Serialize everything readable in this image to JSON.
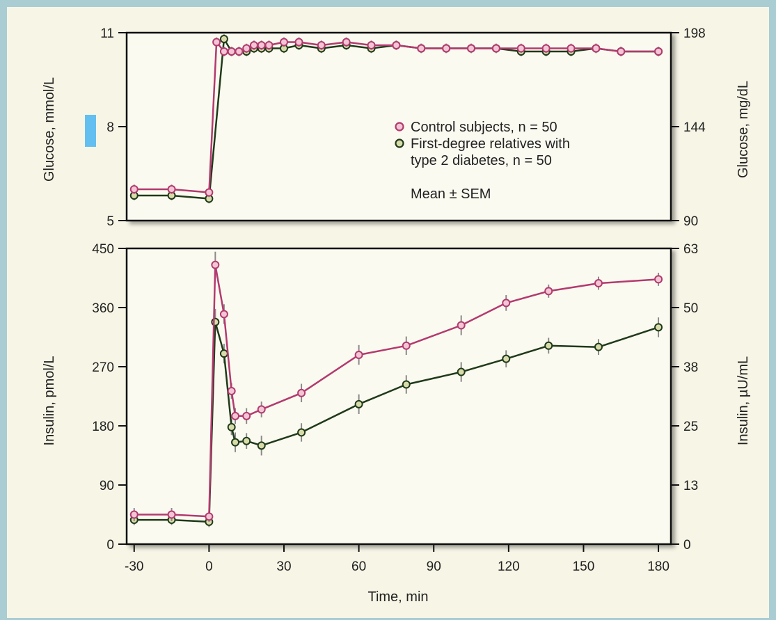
{
  "colors": {
    "background": "#a9cdd3",
    "panel": "#f7f5e6",
    "control": "#b23a6f",
    "control_marker_fill": "#f2c6d4",
    "relatives": "#1f3a1a",
    "relatives_marker_fill": "#d9dcaa",
    "error_bar": "#8a8a8a",
    "highlight": "#63bff0"
  },
  "chart_data": [
    {
      "type": "line",
      "panel": "top",
      "ylabel_left": "Glucose, mmol/L",
      "ylabel_right": "Glucose, mg/dL",
      "ylim": [
        5,
        11
      ],
      "yticks_left": [
        "5",
        "8",
        "11"
      ],
      "yticks_right": [
        "90",
        "144",
        "198"
      ],
      "legend": {
        "placement": "center-right",
        "entries": [
          {
            "series": "control",
            "line1": "Control subjects, n = 50",
            "line2": ""
          },
          {
            "series": "relatives",
            "line1": "First-degree relatives with",
            "line2": "type 2 diabetes, n = 50"
          }
        ],
        "note": "Mean ± SEM"
      },
      "series": [
        {
          "key": "control",
          "x": [
            -30,
            -15,
            0,
            3,
            6,
            9,
            12,
            15,
            18,
            21,
            24,
            30,
            36,
            45,
            55,
            65,
            75,
            85,
            95,
            105,
            115,
            125,
            135,
            145,
            155,
            165,
            180
          ],
          "y": [
            6.0,
            6.0,
            5.9,
            10.7,
            10.4,
            10.4,
            10.4,
            10.5,
            10.6,
            10.6,
            10.6,
            10.7,
            10.7,
            10.6,
            10.7,
            10.6,
            10.6,
            10.5,
            10.5,
            10.5,
            10.5,
            10.5,
            10.5,
            10.5,
            10.5,
            10.4,
            10.4
          ],
          "err": [
            0.15,
            0.15,
            0.15,
            0.15,
            0.15,
            0.15,
            0.15,
            0.15,
            0.15,
            0.15,
            0.15,
            0.15,
            0.15,
            0.15,
            0.15,
            0.15,
            0.15,
            0.15,
            0.15,
            0.15,
            0.15,
            0.15,
            0.15,
            0.15,
            0.15,
            0.15,
            0.15
          ]
        },
        {
          "key": "relatives",
          "x": [
            -30,
            -15,
            0,
            6,
            9,
            12,
            15,
            18,
            21,
            24,
            30,
            36,
            45,
            55,
            65,
            75,
            85,
            95,
            105,
            115,
            125,
            135,
            145,
            155,
            165,
            180
          ],
          "y": [
            5.8,
            5.8,
            5.7,
            10.8,
            10.4,
            10.4,
            10.4,
            10.5,
            10.5,
            10.5,
            10.5,
            10.6,
            10.5,
            10.6,
            10.5,
            10.6,
            10.5,
            10.5,
            10.5,
            10.5,
            10.4,
            10.4,
            10.4,
            10.5,
            10.4,
            10.4
          ],
          "err": [
            0.15,
            0.15,
            0.15,
            0.15,
            0.15,
            0.15,
            0.15,
            0.15,
            0.15,
            0.15,
            0.15,
            0.15,
            0.15,
            0.15,
            0.15,
            0.15,
            0.15,
            0.15,
            0.15,
            0.15,
            0.15,
            0.15,
            0.15,
            0.15,
            0.15,
            0.15
          ]
        }
      ]
    },
    {
      "type": "line",
      "panel": "bottom",
      "xlabel": "Time, min",
      "xlim": [
        -33,
        185
      ],
      "xticks": [
        "-30",
        "0",
        "30",
        "60",
        "90",
        "120",
        "150",
        "180"
      ],
      "xtick_values": [
        -30,
        0,
        30,
        60,
        90,
        120,
        150,
        180
      ],
      "ylabel_left": "Insulin, pmol/L",
      "ylabel_right": "Insulin, µU/mL",
      "ylim": [
        0,
        450
      ],
      "yticks_left": [
        "0",
        "90",
        "180",
        "270",
        "360",
        "450"
      ],
      "yticks_right": [
        "0",
        "13",
        "25",
        "38",
        "50",
        "63"
      ],
      "series": [
        {
          "key": "control",
          "x": [
            -30,
            -15,
            0,
            2.5,
            6,
            9,
            10.5,
            15,
            21,
            37,
            60,
            79,
            101,
            119,
            136,
            156,
            180
          ],
          "y": [
            45,
            45,
            42,
            425,
            350,
            233,
            195,
            195,
            205,
            230,
            288,
            302,
            333,
            367,
            385,
            397,
            403
          ],
          "err": [
            10,
            10,
            8,
            20,
            15,
            12,
            12,
            12,
            12,
            14,
            15,
            14,
            15,
            12,
            10,
            10,
            10
          ]
        },
        {
          "key": "relatives",
          "x": [
            -30,
            -15,
            0,
            2.5,
            6,
            9,
            10.5,
            15,
            21,
            37,
            60,
            79,
            101,
            119,
            136,
            156,
            180
          ],
          "y": [
            37,
            37,
            34,
            338,
            290,
            178,
            155,
            157,
            150,
            170,
            213,
            243,
            262,
            282,
            302,
            300,
            330
          ],
          "err": [
            8,
            8,
            8,
            20,
            15,
            12,
            15,
            12,
            15,
            14,
            15,
            14,
            15,
            13,
            12,
            12,
            15
          ]
        }
      ]
    }
  ]
}
